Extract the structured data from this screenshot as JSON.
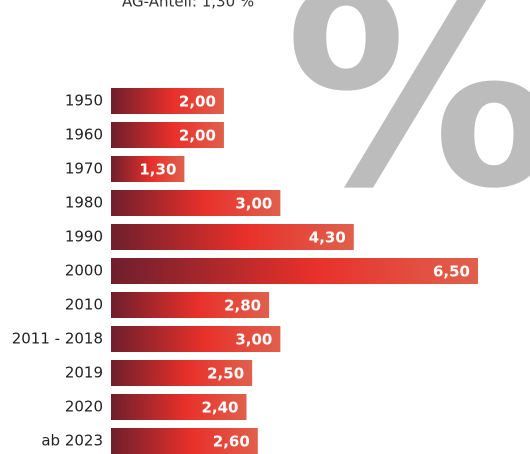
{
  "chart_data": {
    "type": "bar",
    "orientation": "horizontal",
    "annotation": "AG-Anteil: 1,30 %",
    "background_symbol": "%",
    "categories": [
      "1950",
      "1960",
      "1970",
      "1980",
      "1990",
      "2000",
      "2010",
      "2011 - 2018",
      "2019",
      "2020",
      "ab 2023"
    ],
    "values": [
      2.0,
      2.0,
      1.3,
      3.0,
      4.3,
      6.5,
      2.8,
      3.0,
      2.5,
      2.4,
      2.6
    ],
    "value_labels": [
      "2,00",
      "2,00",
      "1,30",
      "3,00",
      "4,30",
      "6,50",
      "2,80",
      "3,00",
      "2,50",
      "2,40",
      "2,60"
    ],
    "colors": [
      "#6e1f2c",
      "#e8302a",
      "#e0604c"
    ]
  }
}
